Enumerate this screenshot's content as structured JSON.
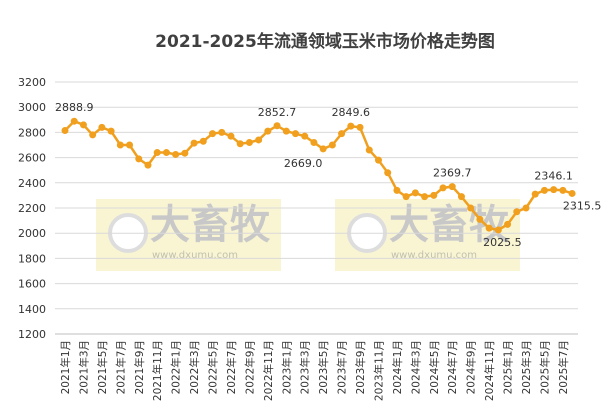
{
  "chart_data": {
    "type": "line",
    "title": "2021-2025年流通领域玉米市场价格走势图",
    "watermark": [
      "大畜牧",
      "www.dxumu.com"
    ],
    "categories": [
      "2021年1月",
      null,
      "2021年3月",
      null,
      "2021年5月",
      null,
      "2021年7月",
      null,
      "2021年9月",
      null,
      "2021年11月",
      null,
      "2022年1月",
      null,
      "2022年3月",
      null,
      "2022年5月",
      null,
      "2022年7月",
      null,
      "2022年9月",
      null,
      "2022年11月",
      null,
      "2023年1月",
      null,
      "2023年3月",
      null,
      "2023年5月",
      null,
      "2023年7月",
      null,
      "2023年9月",
      null,
      "2023年11月",
      null,
      "2024年1月",
      null,
      "2024年3月",
      null,
      "2024年5月",
      null,
      "2024年7月",
      null,
      "2024年9月",
      null,
      "2024年11月",
      null,
      "2025年1月",
      null,
      "2025年3月",
      null,
      "2025年5月",
      null,
      "2025年7月",
      null
    ],
    "series": [
      {
        "name": null,
        "color": "#f0a01e",
        "values": [
          2815,
          2888.9,
          2860,
          2780,
          2840,
          2810,
          2700,
          2700,
          2590,
          2540,
          2640,
          2640,
          2625,
          2635,
          2715,
          2730,
          2790,
          2800,
          2770,
          2710,
          2720,
          2740,
          2810,
          2852.7,
          2810,
          2790,
          2770,
          2720,
          2669,
          2700,
          2790,
          2849.6,
          2840,
          2660,
          2580,
          2480,
          2340,
          2290,
          2320,
          2290,
          2300,
          2360,
          2369.7,
          2290,
          2200,
          2110,
          2040,
          2025.5,
          2070,
          2170,
          2200,
          2310,
          2340,
          2346.1,
          2340,
          2315.5
        ],
        "value_labels": [
          null,
          "2888.9",
          null,
          null,
          null,
          null,
          null,
          null,
          null,
          null,
          null,
          null,
          null,
          null,
          null,
          null,
          null,
          null,
          null,
          null,
          null,
          null,
          null,
          "2852.7",
          null,
          null,
          null,
          null,
          "2669.0",
          null,
          null,
          "2849.6",
          null,
          null,
          null,
          null,
          null,
          null,
          null,
          null,
          null,
          null,
          "2369.7",
          null,
          null,
          null,
          null,
          "2025.5",
          null,
          null,
          null,
          null,
          null,
          "2346.1",
          null,
          "2315.5"
        ]
      }
    ],
    "ylim": [
      1200,
      3200
    ],
    "yticks": [
      1200,
      1400,
      1600,
      1800,
      2000,
      2200,
      2400,
      2600,
      2800,
      3000,
      3200
    ],
    "grid": true
  }
}
